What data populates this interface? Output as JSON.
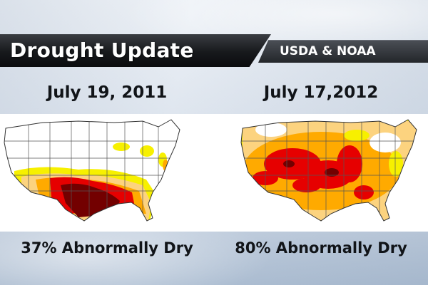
{
  "header": {
    "title": "Drought Update",
    "source": "USDA & NOAA"
  },
  "panels": [
    {
      "date": "July 19, 2011",
      "stat": "37% Abnormally Dry",
      "abnormally_dry_percent": 37
    },
    {
      "date": "July 17,2012",
      "stat": "80% Abnormally Dry",
      "abnormally_dry_percent": 80
    }
  ],
  "colors": {
    "abnormally_dry": "#f7f000",
    "moderate": "#fcd37f",
    "severe": "#ffaa00",
    "extreme": "#e60000",
    "exceptional": "#730000",
    "state_lines": "#555555"
  }
}
